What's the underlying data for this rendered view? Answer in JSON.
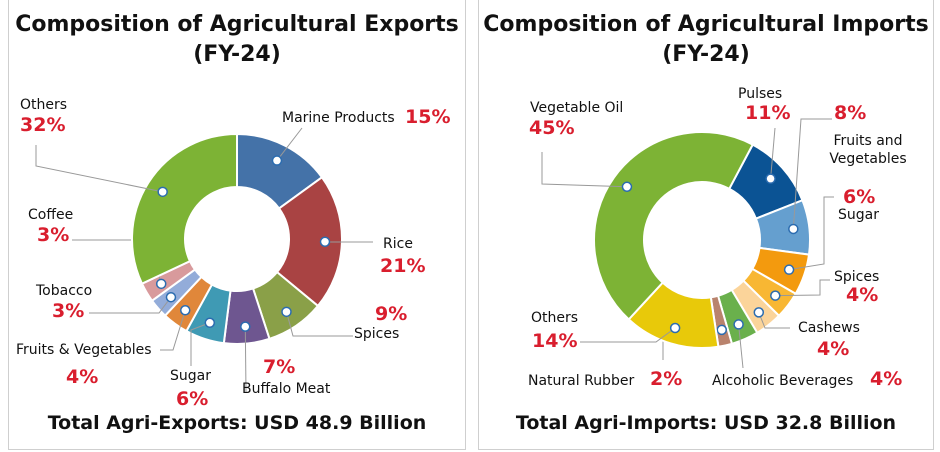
{
  "chart_data": [
    {
      "type": "pie",
      "donut": true,
      "title": "Composition of Agricultural Exports (FY-24)",
      "total_label": "Total Agri-Exports:",
      "total_value": "USD 48.9 Billion",
      "slices": [
        {
          "name": "Marine Products",
          "value": 15,
          "pct": "15%",
          "color": "#4472a8"
        },
        {
          "name": "Rice",
          "value": 21,
          "pct": "21%",
          "color": "#a94343"
        },
        {
          "name": "Spices",
          "value": 9,
          "pct": "9%",
          "color": "#8aa048"
        },
        {
          "name": "Buffalo Meat",
          "value": 7,
          "pct": "7%",
          "color": "#6e5690"
        },
        {
          "name": "Sugar",
          "value": 6,
          "pct": "6%",
          "color": "#3f9ab4"
        },
        {
          "name": "Fruits & Vegetables",
          "value": 4,
          "pct": "4%",
          "color": "#e0873a"
        },
        {
          "name": "Tobacco",
          "value": 3,
          "pct": "3%",
          "color": "#93acd9"
        },
        {
          "name": "Coffee",
          "value": 3,
          "pct": "3%",
          "color": "#d89a9c"
        },
        {
          "name": "Others",
          "value": 32,
          "pct": "32%",
          "color": "#7db335"
        }
      ]
    },
    {
      "type": "pie",
      "donut": true,
      "title": "Composition of Agricultural Imports (FY-24)",
      "total_label": "Total Agri-Imports:",
      "total_value": "USD 32.8 Billion",
      "slices": [
        {
          "name": "Pulses",
          "value": 11,
          "pct": "11%",
          "color": "#0b5394"
        },
        {
          "name": "Fruits and Vegetables",
          "value": 8,
          "pct": "8%",
          "color": "#659fcf"
        },
        {
          "name": "Sugar",
          "value": 6,
          "pct": "6%",
          "color": "#f39a0e"
        },
        {
          "name": "Spices",
          "value": 4,
          "pct": "4%",
          "color": "#f8b733"
        },
        {
          "name": "Cashews",
          "value": 4,
          "pct": "4%",
          "color": "#fbd49a"
        },
        {
          "name": "Alcoholic Beverages",
          "value": 4,
          "pct": "4%",
          "color": "#6ab04c"
        },
        {
          "name": "Natural Rubber",
          "value": 2,
          "pct": "2%",
          "color": "#b9836d"
        },
        {
          "name": "Others",
          "value": 14,
          "pct": "14%",
          "color": "#e8c90a"
        },
        {
          "name": "Vegetable Oil",
          "value": 45,
          "pct": "45%",
          "color": "#7db335"
        }
      ]
    }
  ]
}
